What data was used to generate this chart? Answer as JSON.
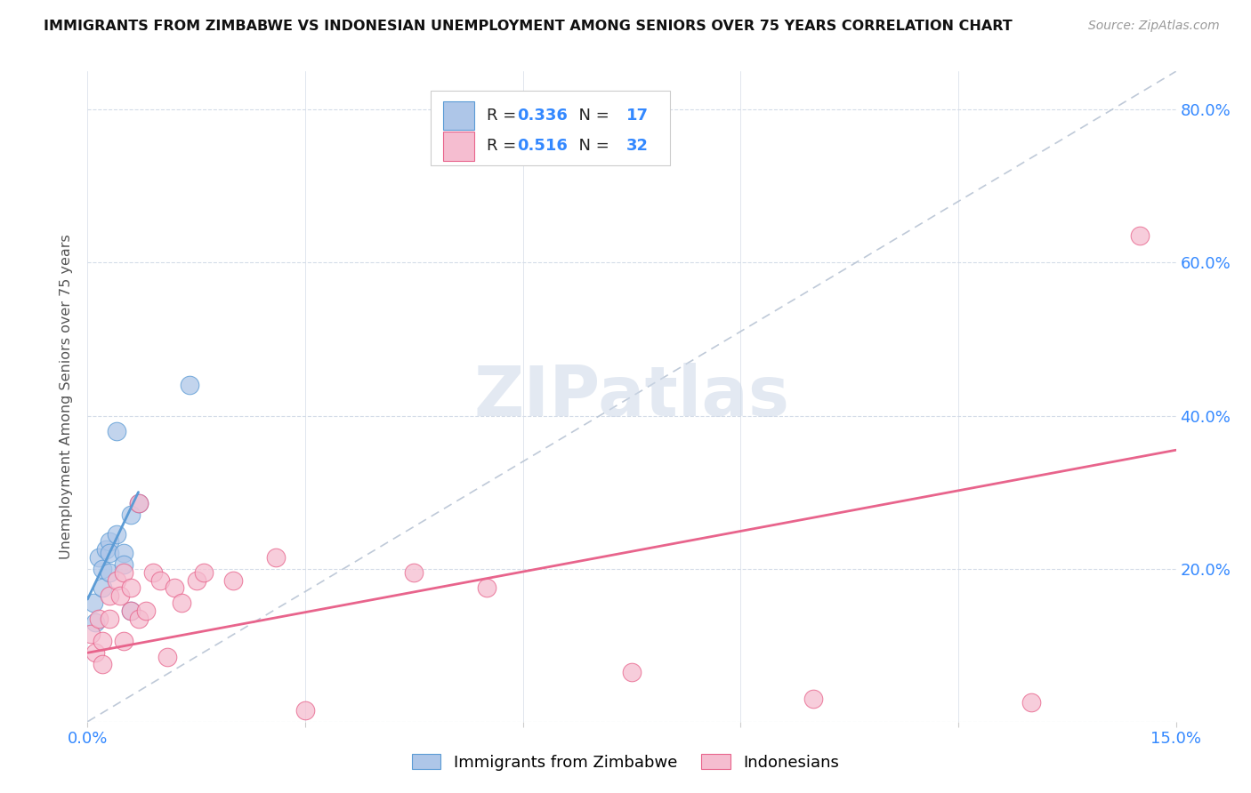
{
  "title": "IMMIGRANTS FROM ZIMBABWE VS INDONESIAN UNEMPLOYMENT AMONG SENIORS OVER 75 YEARS CORRELATION CHART",
  "source": "Source: ZipAtlas.com",
  "ylabel": "Unemployment Among Seniors over 75 years",
  "xlim": [
    0.0,
    0.15
  ],
  "ylim": [
    0.0,
    0.85
  ],
  "xtick_positions": [
    0.0,
    0.03,
    0.06,
    0.09,
    0.12,
    0.15
  ],
  "xtick_labels": [
    "0.0%",
    "",
    "",
    "",
    "",
    "15.0%"
  ],
  "ytick_positions": [
    0.0,
    0.2,
    0.4,
    0.6,
    0.8
  ],
  "ytick_labels_right": [
    "",
    "20.0%",
    "40.0%",
    "60.0%",
    "80.0%"
  ],
  "watermark_text": "ZIPatlas",
  "blue_color": "#aec6e8",
  "blue_edge_color": "#5b9bd5",
  "pink_color": "#f5bdd0",
  "pink_edge_color": "#e8648c",
  "diag_line_color": "#b8c4d4",
  "blue_trend_color": "#5b9bd5",
  "pink_trend_color": "#e8648c",
  "legend_R1": "0.336",
  "legend_N1": "17",
  "legend_R2": "0.516",
  "legend_N2": "32",
  "label1": "Immigrants from Zimbabwe",
  "label2": "Indonesians",
  "blue_scatter_x": [
    0.0008,
    0.001,
    0.0015,
    0.002,
    0.002,
    0.0025,
    0.003,
    0.003,
    0.003,
    0.004,
    0.004,
    0.005,
    0.005,
    0.006,
    0.006,
    0.007,
    0.014
  ],
  "blue_scatter_y": [
    0.155,
    0.13,
    0.215,
    0.2,
    0.175,
    0.225,
    0.235,
    0.22,
    0.195,
    0.38,
    0.245,
    0.22,
    0.205,
    0.27,
    0.145,
    0.285,
    0.44
  ],
  "pink_scatter_x": [
    0.0005,
    0.001,
    0.0015,
    0.002,
    0.002,
    0.003,
    0.003,
    0.004,
    0.0045,
    0.005,
    0.005,
    0.006,
    0.006,
    0.007,
    0.007,
    0.008,
    0.009,
    0.01,
    0.011,
    0.012,
    0.013,
    0.015,
    0.016,
    0.02,
    0.026,
    0.03,
    0.045,
    0.055,
    0.075,
    0.1,
    0.13,
    0.145
  ],
  "pink_scatter_y": [
    0.115,
    0.09,
    0.135,
    0.105,
    0.075,
    0.165,
    0.135,
    0.185,
    0.165,
    0.105,
    0.195,
    0.145,
    0.175,
    0.135,
    0.285,
    0.145,
    0.195,
    0.185,
    0.085,
    0.175,
    0.155,
    0.185,
    0.195,
    0.185,
    0.215,
    0.015,
    0.195,
    0.175,
    0.065,
    0.03,
    0.025,
    0.635
  ],
  "blue_trend_x": [
    0.0,
    0.007
  ],
  "blue_trend_y": [
    0.16,
    0.3
  ],
  "pink_trend_x": [
    0.0,
    0.15
  ],
  "pink_trend_y": [
    0.09,
    0.355
  ],
  "scatter_size": 220
}
